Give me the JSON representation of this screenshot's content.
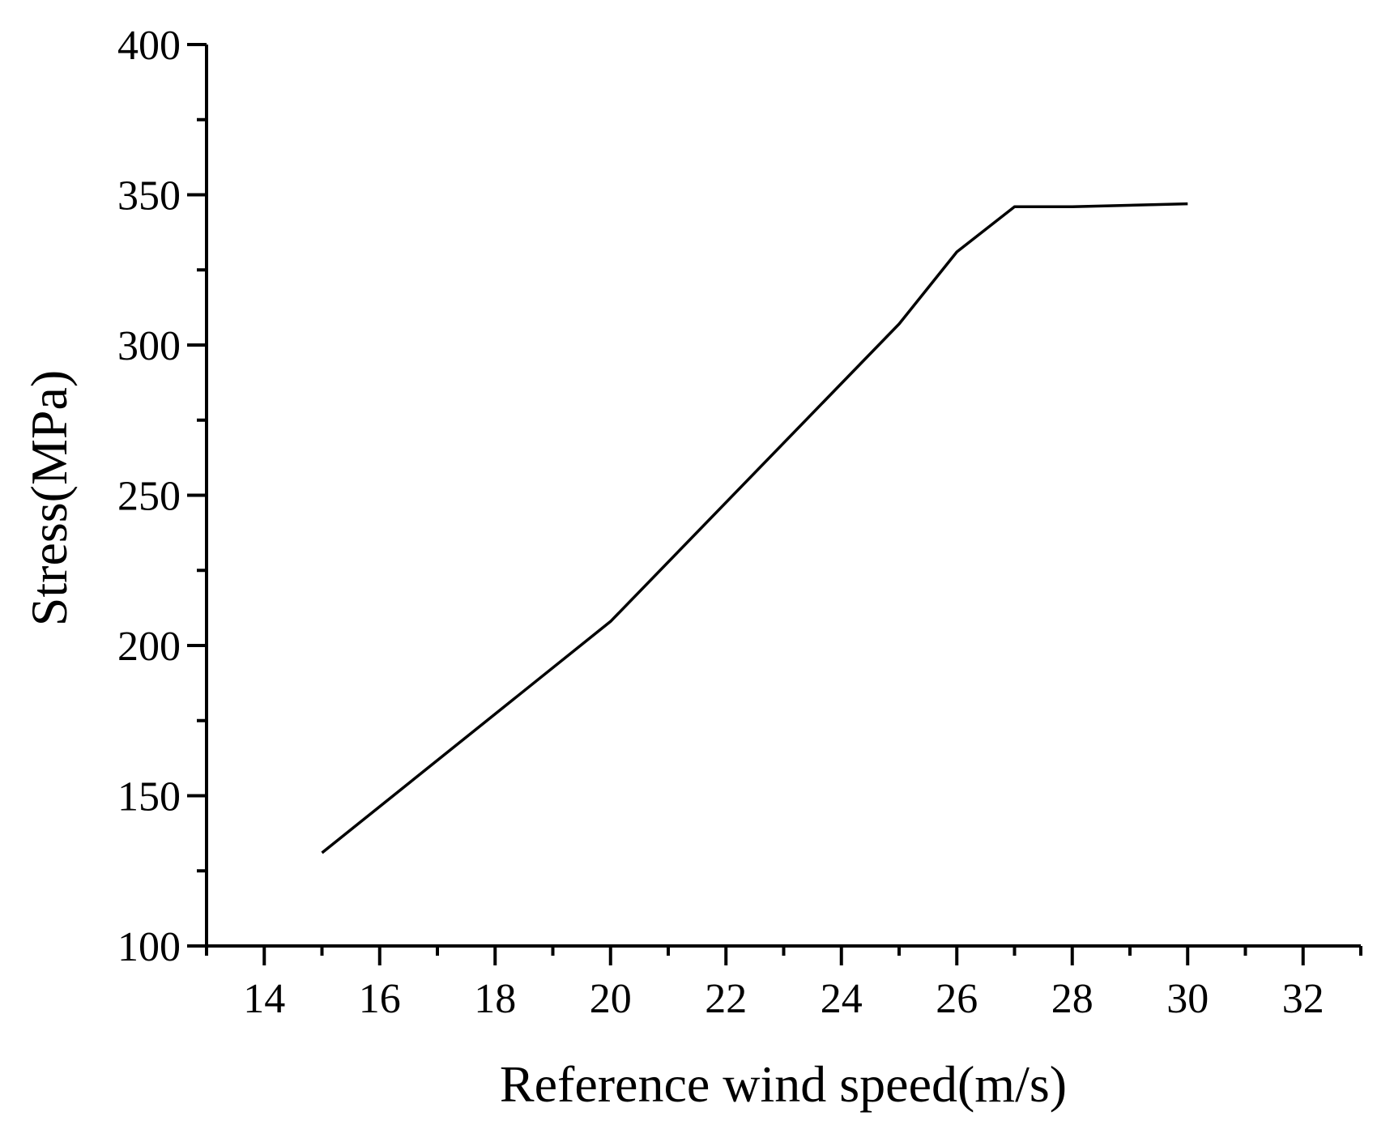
{
  "chart_data": {
    "type": "line",
    "title": "",
    "xlabel": "Reference wind speed(m/s)",
    "ylabel": "Stress(MPa)",
    "xlim": [
      13,
      33
    ],
    "ylim": [
      100,
      400
    ],
    "x_ticks": [
      14,
      16,
      18,
      20,
      22,
      24,
      26,
      28,
      30,
      32
    ],
    "y_ticks": [
      100,
      150,
      200,
      250,
      300,
      350,
      400
    ],
    "x_tick_labels": [
      "14",
      "16",
      "18",
      "20",
      "22",
      "24",
      "26",
      "28",
      "30",
      "32"
    ],
    "y_tick_labels": [
      "100",
      "150",
      "200",
      "250",
      "300",
      "350",
      "400"
    ],
    "grid": false,
    "series": [
      {
        "x": [
          15,
          20,
          25,
          26,
          27,
          28,
          30
        ],
        "y": [
          131,
          208,
          307,
          331,
          346,
          346,
          347
        ]
      }
    ],
    "colors": {
      "line": "#000000",
      "axis": "#000000"
    }
  }
}
